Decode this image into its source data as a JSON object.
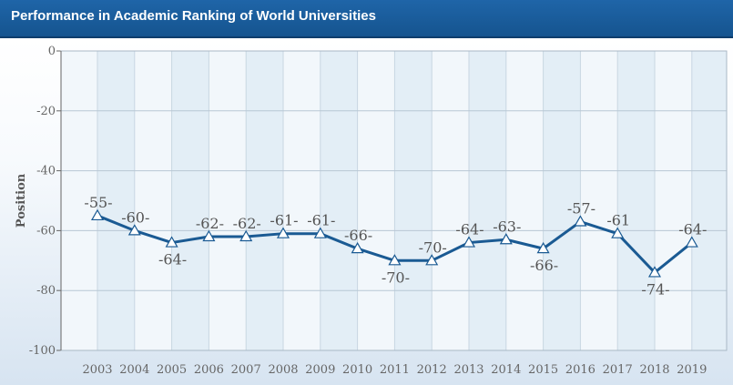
{
  "header": {
    "title": "Performance in Academic Ranking of World Universities"
  },
  "chart_data": {
    "type": "line",
    "title": "Performance in Academic Ranking of World Universities",
    "xlabel": "",
    "ylabel": "Position",
    "ylim": [
      -100,
      0
    ],
    "yticks": [
      "-100",
      "-80",
      "-60",
      "-40",
      "-20",
      "0"
    ],
    "categories": [
      "2003",
      "2004",
      "2005",
      "2006",
      "2007",
      "2008",
      "2009",
      "2010",
      "2011",
      "2012",
      "2013",
      "2014",
      "2015",
      "2016",
      "2017",
      "2018",
      "2019"
    ],
    "series": [
      {
        "values": [
          -55,
          -60,
          -64,
          -62,
          -62,
          -61,
          -61,
          -66,
          -70,
          -70,
          -64,
          -63,
          -66,
          -57,
          -61,
          -74,
          -64
        ]
      }
    ],
    "data_labels": [
      "-55-",
      "-60-",
      "-64-",
      "-62-",
      "-62-",
      "-61-",
      "-61-",
      "-66-",
      "-70-",
      "-70-",
      "-64-",
      "-63-",
      "-66-",
      "-57-",
      "-61",
      "-74-",
      "-64-"
    ],
    "colors": {
      "line": "#1a5a93",
      "header": "#1a5c9e",
      "band_light": "#f2f7fb",
      "band_dark": "#e3eef6"
    },
    "grid": true,
    "marker": "triangle"
  }
}
